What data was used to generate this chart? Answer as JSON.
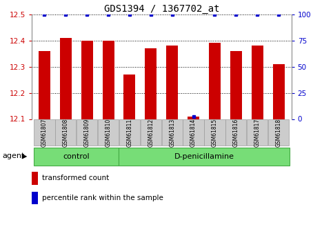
{
  "title": "GDS1394 / 1367702_at",
  "samples": [
    "GSM61807",
    "GSM61808",
    "GSM61809",
    "GSM61810",
    "GSM61811",
    "GSM61812",
    "GSM61813",
    "GSM61814",
    "GSM61815",
    "GSM61816",
    "GSM61817",
    "GSM61818"
  ],
  "red_values": [
    12.36,
    12.41,
    12.4,
    12.4,
    12.27,
    12.37,
    12.38,
    12.11,
    12.39,
    12.36,
    12.38,
    12.31
  ],
  "blue_values": [
    100,
    100,
    100,
    100,
    100,
    100,
    100,
    2,
    100,
    100,
    100,
    100
  ],
  "groups": [
    {
      "label": "control",
      "start": 0,
      "end": 4
    },
    {
      "label": "D-penicillamine",
      "start": 4,
      "end": 12
    }
  ],
  "group_label_prefix": "agent",
  "ylim_left": [
    12.1,
    12.5
  ],
  "ylim_right": [
    0,
    100
  ],
  "yticks_left": [
    12.1,
    12.2,
    12.3,
    12.4,
    12.5
  ],
  "yticks_right": [
    0,
    25,
    50,
    75,
    100
  ],
  "bar_color": "#cc0000",
  "dot_color": "#0000cc",
  "grid_color": "#000000",
  "bg_color": "#ffffff",
  "tick_bg": "#cccccc",
  "group_bg": "#77dd77",
  "group_edge": "#44aa44",
  "legend_red": "transformed count",
  "legend_blue": "percentile rank within the sample",
  "title_fontsize": 10,
  "axis_fontsize": 7.5,
  "sample_fontsize": 5.5,
  "group_fontsize": 8,
  "legend_fontsize": 7.5,
  "agent_fontsize": 8
}
